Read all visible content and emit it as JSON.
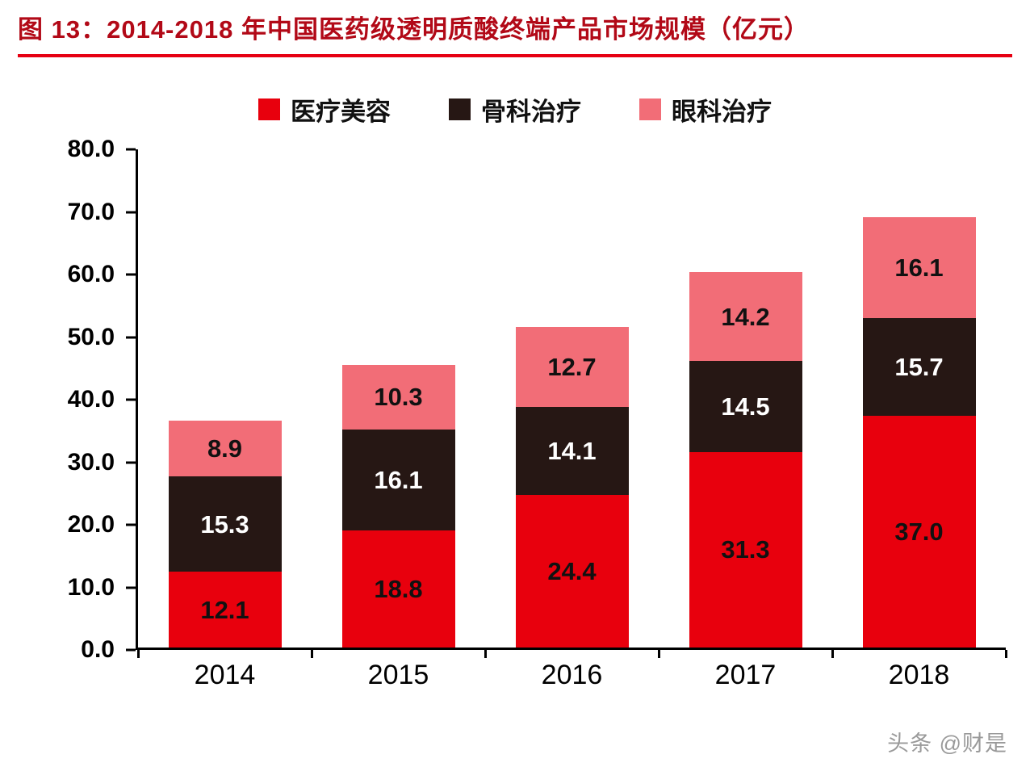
{
  "title": "图 13：2014-2018 年中国医药级透明质酸终端产品市场规模（亿元）",
  "watermark": "头条 @财是",
  "colors": {
    "title_text": "#b20917",
    "title_rule": "#e60012",
    "axis": "#000000",
    "watermark_text": "#9a9a9a"
  },
  "chart_data": {
    "type": "bar",
    "stacked": true,
    "title": "图 13：2014-2018 年中国医药级透明质酸终端产品市场规模（亿元）",
    "categories": [
      "2014",
      "2015",
      "2016",
      "2017",
      "2018"
    ],
    "series": [
      {
        "name": "医疗美容",
        "color": "#e8000d",
        "label_color": "#111111",
        "values": [
          12.1,
          18.8,
          24.4,
          31.3,
          37.0
        ]
      },
      {
        "name": "骨科治疗",
        "color": "#261714",
        "label_color": "#ffffff",
        "values": [
          15.3,
          16.1,
          14.1,
          14.5,
          15.7
        ]
      },
      {
        "name": "眼科治疗",
        "color": "#f26d77",
        "label_color": "#111111",
        "values": [
          8.9,
          10.3,
          12.7,
          14.2,
          16.1
        ]
      }
    ],
    "totals": [
      36.3,
      45.2,
      51.2,
      60.0,
      68.8
    ],
    "xlabel": "",
    "ylabel": "",
    "ylim": [
      0,
      80
    ],
    "ytick_step": 10,
    "ytick_labels": [
      "0.0",
      "10.0",
      "20.0",
      "30.0",
      "40.0",
      "50.0",
      "60.0",
      "70.0",
      "80.0"
    ],
    "legend_position": "top",
    "grid": false,
    "value_label_format": "one_decimal"
  }
}
